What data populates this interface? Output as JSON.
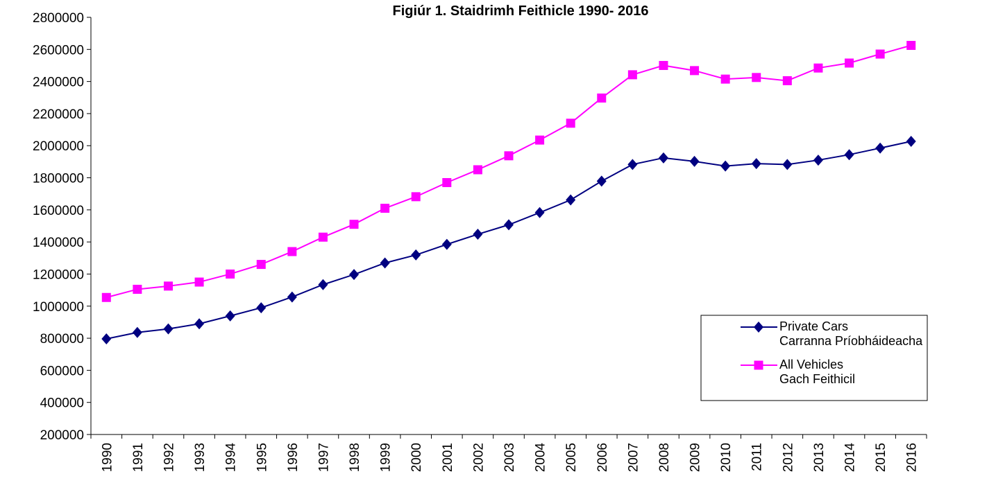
{
  "chart_data": {
    "type": "line",
    "title": "Figiúr 1. Staidrimh Feithicle 1990- 2016",
    "categories": [
      "1990",
      "1991",
      "1992",
      "1993",
      "1994",
      "1995",
      "1996",
      "1997",
      "1998",
      "1999",
      "2000",
      "2001",
      "2002",
      "2003",
      "2004",
      "2005",
      "2006",
      "2007",
      "2008",
      "2009",
      "2010",
      "2011",
      "2012",
      "2013",
      "2014",
      "2015",
      "2016"
    ],
    "series": [
      {
        "name": "Private Cars\nCarranna Príobháideacha",
        "color": "#000080",
        "marker": "diamond",
        "values": [
          796000,
          836000,
          858000,
          890000,
          939000,
          990000,
          1057000,
          1134000,
          1197000,
          1269000,
          1319000,
          1385000,
          1448000,
          1507000,
          1583000,
          1662000,
          1779000,
          1883000,
          1924000,
          1902000,
          1873000,
          1888000,
          1883000,
          1910000,
          1944000,
          1985000,
          2027000
        ]
      },
      {
        "name": "All Vehicles\nGach Feithicil",
        "color": "#FF00FF",
        "marker": "square",
        "values": [
          1054000,
          1105000,
          1125000,
          1150000,
          1200000,
          1260000,
          1340000,
          1430000,
          1510000,
          1610000,
          1682000,
          1770000,
          1850000,
          1937000,
          2035000,
          2140000,
          2297000,
          2442000,
          2500000,
          2468000,
          2415000,
          2425000,
          2405000,
          2484000,
          2515000,
          2571000,
          2625000
        ]
      }
    ],
    "ylim": [
      200000,
      2800000
    ],
    "yticks": [
      200000,
      400000,
      600000,
      800000,
      1000000,
      1200000,
      1400000,
      1600000,
      1800000,
      2000000,
      2200000,
      2400000,
      2600000,
      2800000
    ],
    "grid": false,
    "legend": "lower right"
  }
}
